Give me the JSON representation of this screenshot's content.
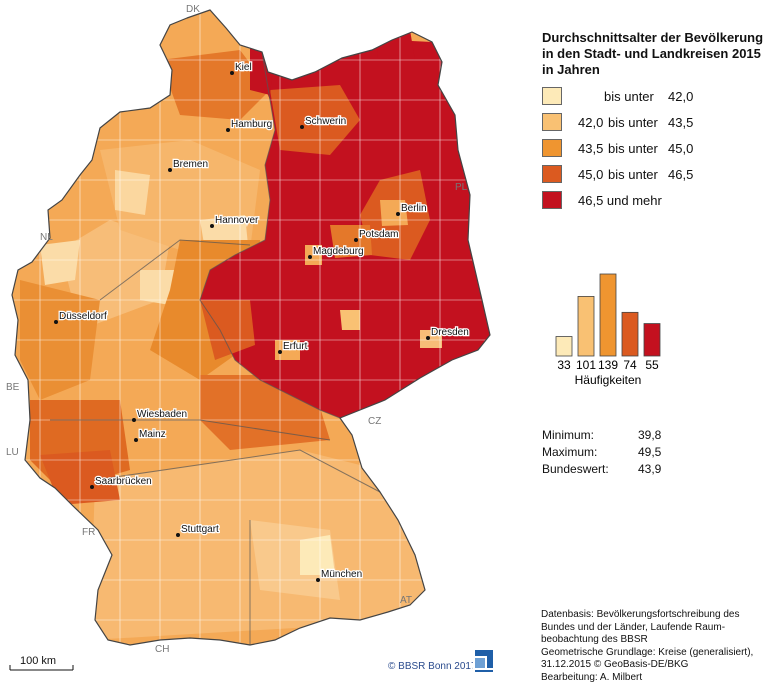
{
  "title_lines": [
    "Durchschnittsalter der Bevölkerung",
    "in den Stadt- und Landkreisen 2015",
    "in Jahren"
  ],
  "legend": [
    {
      "a": "",
      "b": "bis unter",
      "c": "42,0",
      "color": "#fdeab8"
    },
    {
      "a": "42,0",
      "b": "bis unter",
      "c": "43,5",
      "color": "#f9c173"
    },
    {
      "a": "43,5",
      "b": "bis unter",
      "c": "45,0",
      "color": "#ef9530"
    },
    {
      "a": "45,0",
      "b": "bis unter",
      "c": "46,5",
      "color": "#db5a20"
    },
    {
      "a": "46,5 und mehr",
      "b": "",
      "c": "",
      "color": "#c3111f"
    }
  ],
  "histogram": {
    "counts": [
      33,
      101,
      139,
      74,
      55
    ],
    "labels": [
      "33",
      "101",
      "139",
      "74",
      "55"
    ],
    "caption": "Häufigkeiten"
  },
  "stats": [
    {
      "label": "Minimum:",
      "value": "39,8"
    },
    {
      "label": "Maximum:",
      "value": "49,5"
    },
    {
      "label": "Bundeswert:",
      "value": "43,9"
    }
  ],
  "cities": [
    {
      "name": "Kiel"
    },
    {
      "name": "Hamburg"
    },
    {
      "name": "Schwerin"
    },
    {
      "name": "Bremen"
    },
    {
      "name": "Berlin"
    },
    {
      "name": "Potsdam"
    },
    {
      "name": "Hannover"
    },
    {
      "name": "Magdeburg"
    },
    {
      "name": "Düsseldorf"
    },
    {
      "name": "Erfurt"
    },
    {
      "name": "Dresden"
    },
    {
      "name": "Wiesbaden"
    },
    {
      "name": "Mainz"
    },
    {
      "name": "Saarbrücken"
    },
    {
      "name": "Stuttgart"
    },
    {
      "name": "München"
    }
  ],
  "neighbors": [
    "DK",
    "PL",
    "NL",
    "BE",
    "LU",
    "CZ",
    "FR",
    "AT",
    "CH"
  ],
  "scale_label": "100 km",
  "copyright": "© BBSR Bonn 2017",
  "source_lines": [
    "Datenbasis: Bevölkerungsfortschreibung des",
    "Bundes und der Länder, Laufende Raum-",
    "beobachtung des BBSR",
    "Geometrische Grundlage: Kreise (generalisiert),",
    "31.12.2015 © GeoBasis-DE/BKG",
    "Bearbeitung: A. Milbert"
  ]
}
